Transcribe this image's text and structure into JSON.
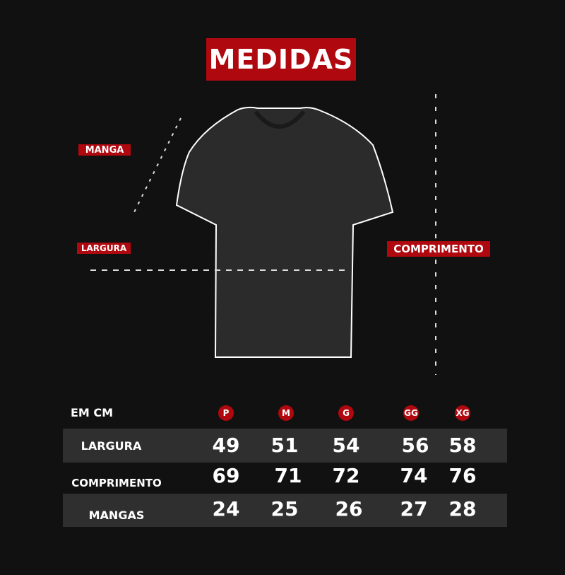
{
  "title": "MEDIDAS",
  "labels": {
    "manga": "MANGA",
    "largura": "LARGURA",
    "comprimento": "COMPRIMENTO"
  },
  "colors": {
    "accent": "#b0080f",
    "background": "#111111",
    "band": "#2f2f2f"
  },
  "table": {
    "unit_label": "EM CM",
    "sizes": [
      "P",
      "M",
      "G",
      "GG",
      "XG"
    ],
    "rows": [
      {
        "label": "LARGURA",
        "values": [
          "49",
          "51",
          "54",
          "56",
          "58"
        ]
      },
      {
        "label": "COMPRIMENTO",
        "values": [
          "69",
          "71",
          "72",
          "74",
          "76"
        ]
      },
      {
        "label": "MANGAS",
        "values": [
          "24",
          "25",
          "26",
          "27",
          "28"
        ]
      }
    ]
  }
}
